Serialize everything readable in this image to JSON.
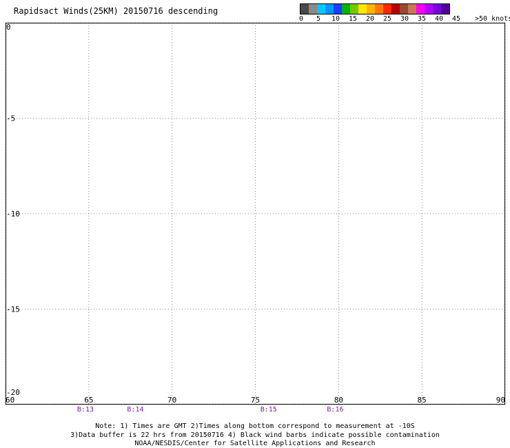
{
  "title": "Rapidsact Winds(25KM) 20150716 descending",
  "legend": {
    "colors": [
      "#4a4a4a",
      "#8a8a8a",
      "#00c8ff",
      "#0096ff",
      "#1e3cff",
      "#00b400",
      "#78c800",
      "#ffe600",
      "#ffb400",
      "#ff7800",
      "#ff2800",
      "#b40000",
      "#964b32",
      "#c87850",
      "#ff00ff",
      "#b400ff",
      "#7800dc",
      "#500096"
    ],
    "labels": [
      "0",
      "5",
      "10",
      "15",
      "20",
      "25",
      "30",
      "35",
      "40",
      "45",
      ">50 knots"
    ]
  },
  "map": {
    "lon_labels": [
      "60",
      "65",
      "70",
      "75",
      "80",
      "85",
      "90"
    ],
    "lat_labels": [
      "0",
      "-5",
      "-10",
      "-15",
      "-20"
    ],
    "beams": [
      "B:13",
      "B:14",
      "B:15",
      "B:16"
    ]
  },
  "notes": {
    "line1": "Note: 1) Times are GMT 2)Times along bottom correspond to measurement at -10S",
    "line2": "3)Data buffer is 22 hrs from 20150716 4) Black wind barbs indicate possible contamination",
    "line3": "NOAA/NESDIS/Center for Satellite Applications and Research"
  }
}
